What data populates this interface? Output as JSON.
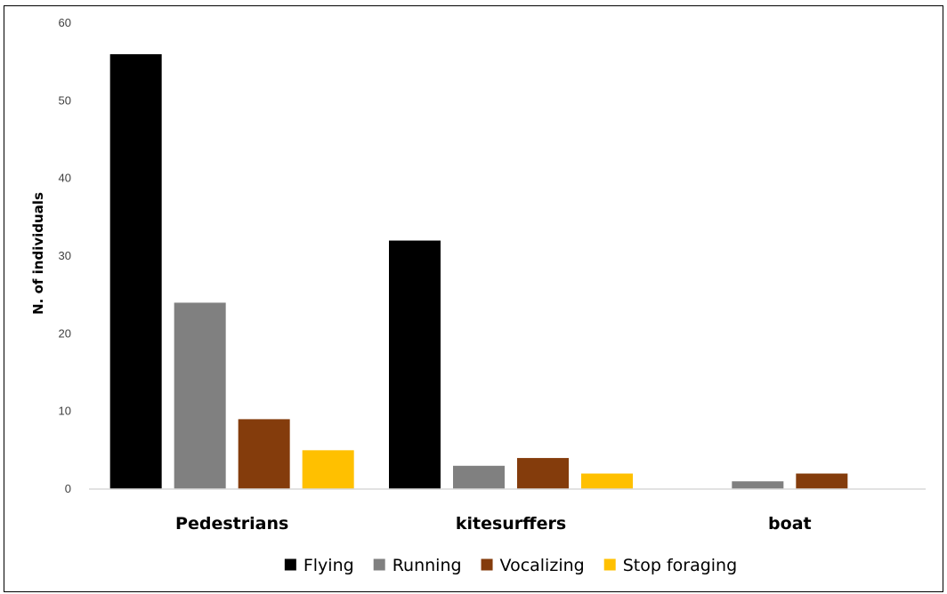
{
  "chart_data": {
    "type": "bar",
    "title": "",
    "xlabel": "",
    "ylabel": "N. of individuals",
    "categories": [
      "Pedestrians",
      "kitesurffers",
      "boat"
    ],
    "series": [
      {
        "name": "Flying",
        "color": "#000000",
        "values": [
          56,
          32,
          0
        ]
      },
      {
        "name": "Running",
        "color": "#808080",
        "values": [
          24,
          3,
          1
        ]
      },
      {
        "name": "Vocalizing",
        "color": "#843c0c",
        "values": [
          9,
          4,
          2
        ]
      },
      {
        "name": "Stop foraging",
        "color": "#ffc000",
        "values": [
          5,
          2,
          0
        ]
      }
    ],
    "ylim": [
      0,
      60
    ],
    "yticks": [
      0,
      10,
      20,
      30,
      40,
      50,
      60
    ],
    "grid": false,
    "legend": "bottom",
    "axis_color": "#d9d9d9"
  }
}
